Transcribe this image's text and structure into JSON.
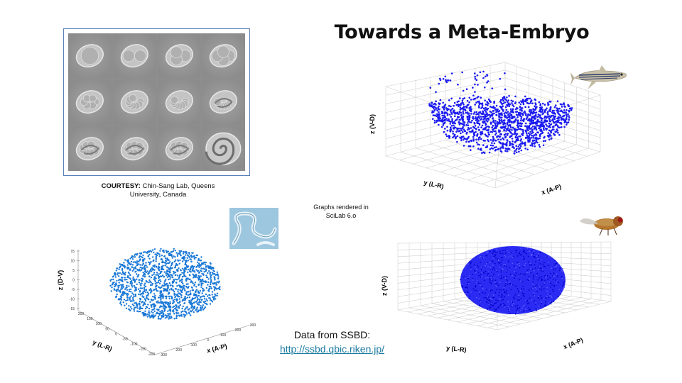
{
  "slide": {
    "title": "Towards a Meta-Embryo",
    "courtesy_label": "COURTESY:",
    "courtesy_text": "Chin-Sang Lab, Queens University, Canada",
    "rendered_note": "Graphs rendered in SciLab 6.o",
    "data_from": "Data from SSBD:",
    "data_link": "http://ssbd.qbic.riken.jp/"
  },
  "plots": {
    "zebrafish": {
      "z_label": "z (V-D)",
      "y_label": "y (L-R)",
      "x_label": "x (A-P)",
      "point_color": "#1a1af0",
      "icon": "zebrafish-photo"
    },
    "worm": {
      "z_label": "z (D-V)",
      "y_label": "y (L-R)",
      "x_label": "x (A-P)",
      "point_color": "#1a78d6",
      "icon": "c-elegans-photo",
      "z_ticks": [
        "15",
        "10",
        "5",
        "0",
        "-5",
        "-10",
        "-15"
      ],
      "y_ticks": [
        "200",
        "150",
        "100",
        "50",
        "0",
        "-50",
        "-100",
        "-150",
        "-200"
      ],
      "x_ticks": [
        "-300",
        "-200",
        "-100",
        "0",
        "100",
        "200",
        "300"
      ]
    },
    "fly": {
      "z_label": "z (V-D)",
      "y_label": "y (L-R)",
      "x_label": "x (A-P)",
      "point_color": "#1a1af0",
      "icon": "drosophila-photo"
    }
  },
  "images": {
    "embryo_panel": "c-elegans-embryo-development-photo-grid"
  }
}
